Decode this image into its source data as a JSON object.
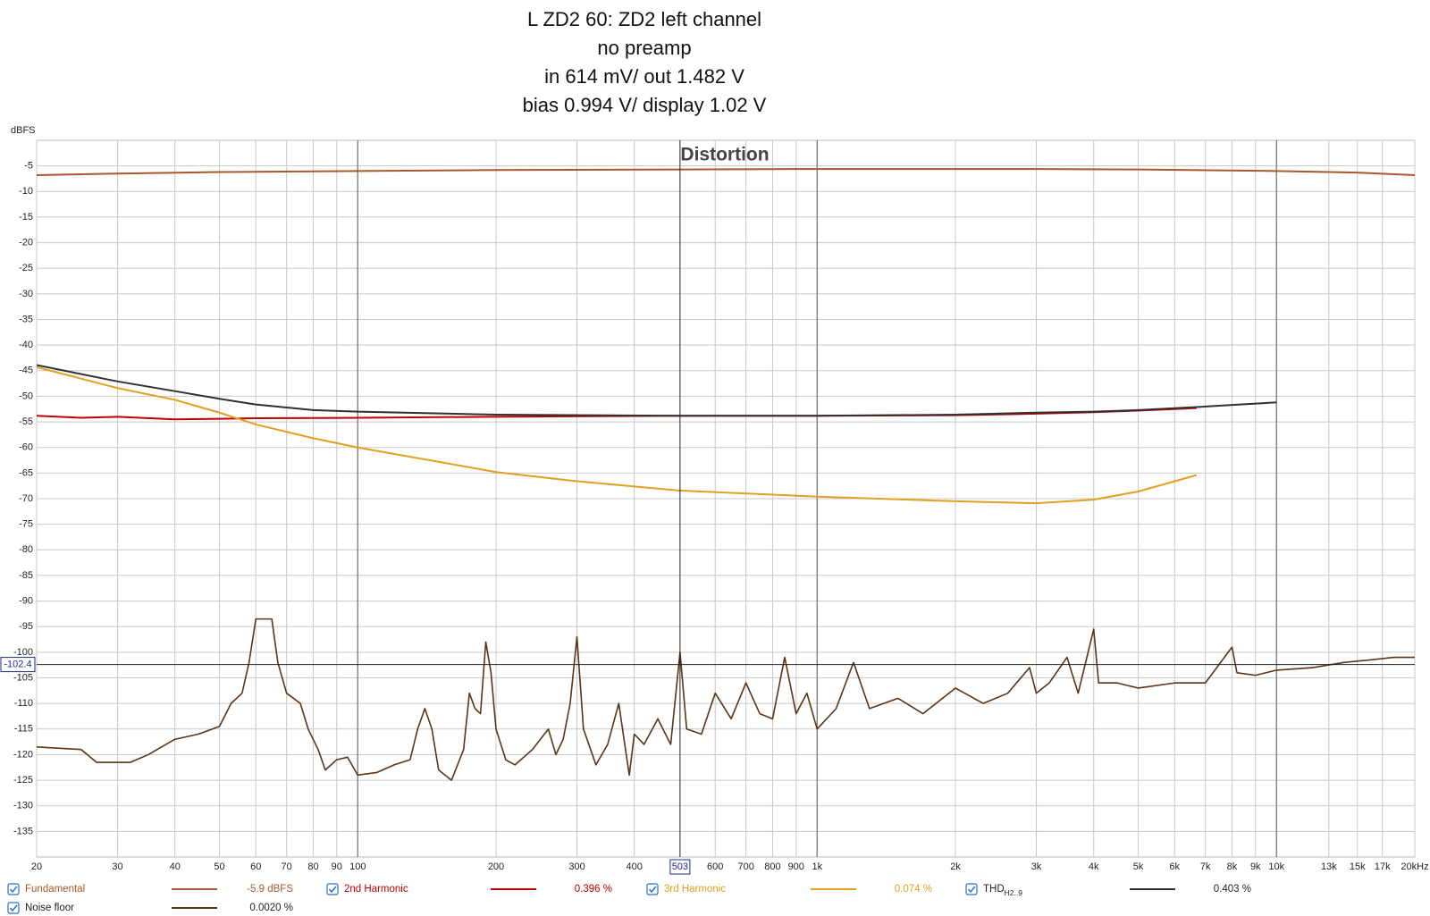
{
  "chart_data": {
    "type": "line",
    "title_lines": [
      "L ZD2 60: ZD2 left channel",
      "no preamp",
      "in 614 mV/ out 1.482 V",
      "bias 0.994 V/ display 1.02 V"
    ],
    "plot_title": "Distortion",
    "y_label": "dBFS",
    "xlog": true,
    "grid": true,
    "xlim": [
      20,
      20000
    ],
    "ylim": [
      -140,
      0
    ],
    "yticks": [
      -5,
      -10,
      -15,
      -20,
      -25,
      -30,
      -35,
      -40,
      -45,
      -50,
      -55,
      -60,
      -65,
      -70,
      -75,
      -80,
      -85,
      -90,
      -95,
      -100,
      -105,
      -110,
      -115,
      -120,
      -125,
      -130,
      -135
    ],
    "xticks": [
      20,
      30,
      40,
      50,
      60,
      70,
      80,
      90,
      100,
      200,
      300,
      400,
      600,
      700,
      800,
      900,
      {
        "value": 1000,
        "label": "1k"
      },
      {
        "value": 2000,
        "label": "2k"
      },
      {
        "value": 3000,
        "label": "3k"
      },
      {
        "value": 4000,
        "label": "4k"
      },
      {
        "value": 5000,
        "label": "5k"
      },
      {
        "value": 6000,
        "label": "6k"
      },
      {
        "value": 7000,
        "label": "7k"
      },
      {
        "value": 8000,
        "label": "8k"
      },
      {
        "value": 9000,
        "label": "9k"
      },
      {
        "value": 10000,
        "label": "10k"
      },
      {
        "value": 13000,
        "label": "13k"
      },
      {
        "value": 15000,
        "label": "15k"
      },
      {
        "value": 17000,
        "label": "17k"
      },
      {
        "value": 20000,
        "label": "20kHz"
      }
    ],
    "cursor": {
      "x": 503,
      "y": -102.4
    },
    "series": [
      {
        "name": "Fundamental",
        "color": "#a8582c",
        "readout": "-5.9 dBFS",
        "x": [
          20,
          30,
          50,
          100,
          200,
          500,
          1000,
          2000,
          3000,
          5000,
          10000,
          15000,
          20000
        ],
        "values": [
          -6.8,
          -6.5,
          -6.2,
          -6.0,
          -5.8,
          -5.7,
          -5.6,
          -5.6,
          -5.6,
          -5.7,
          -6.0,
          -6.3,
          -6.8
        ]
      },
      {
        "name": "2nd Harmonic",
        "color": "#c00000",
        "readout": "0.396 %",
        "x": [
          20,
          25,
          30,
          40,
          60,
          100,
          200,
          500,
          1000,
          2000,
          3000,
          4000,
          5000,
          6700
        ],
        "values": [
          -53.8,
          -54.2,
          -54.0,
          -54.5,
          -54.3,
          -54.2,
          -54.0,
          -53.8,
          -53.8,
          -53.7,
          -53.4,
          -53.1,
          -52.8,
          -52.3
        ]
      },
      {
        "name": "3rd Harmonic",
        "color": "#e0a020",
        "readout": "0.074 %",
        "x": [
          20,
          30,
          40,
          50,
          60,
          80,
          100,
          200,
          300,
          500,
          1000,
          2000,
          3000,
          4000,
          5000,
          6700
        ],
        "values": [
          -44.3,
          -48.4,
          -50.7,
          -53.2,
          -55.5,
          -58.2,
          -60.0,
          -64.8,
          -66.6,
          -68.4,
          -69.6,
          -70.5,
          -70.9,
          -70.2,
          -68.6,
          -65.4
        ]
      },
      {
        "name": "THD",
        "name_sub": "H2..9",
        "color": "#303030",
        "readout": "0.403 %",
        "x": [
          20,
          30,
          40,
          50,
          60,
          80,
          100,
          200,
          500,
          1000,
          2000,
          3000,
          4000,
          5000,
          6700,
          10000
        ],
        "values": [
          -43.9,
          -47.1,
          -49.0,
          -50.5,
          -51.6,
          -52.7,
          -53.0,
          -53.6,
          -53.8,
          -53.8,
          -53.6,
          -53.2,
          -53.0,
          -52.7,
          -52.1,
          -51.2
        ]
      },
      {
        "name": "Noise floor",
        "color": "#5c3317",
        "readout": "0.0020 %",
        "x": [
          20,
          25,
          27,
          32,
          35,
          40,
          45,
          50,
          53,
          56,
          58,
          60,
          65,
          67,
          70,
          75,
          78,
          82,
          85,
          90,
          95,
          100,
          110,
          120,
          130,
          135,
          140,
          145,
          150,
          160,
          170,
          175,
          180,
          185,
          190,
          195,
          200,
          210,
          220,
          240,
          260,
          270,
          280,
          290,
          300,
          310,
          330,
          350,
          370,
          390,
          400,
          420,
          450,
          480,
          503,
          520,
          560,
          600,
          650,
          700,
          750,
          800,
          850,
          900,
          950,
          1000,
          1100,
          1200,
          1300,
          1500,
          1700,
          2000,
          2300,
          2600,
          2900,
          3000,
          3200,
          3500,
          3700,
          4000,
          4100,
          4500,
          5000,
          6000,
          7000,
          8000,
          8200,
          9000,
          10000,
          12000,
          14000,
          16000,
          18000,
          20000
        ],
        "values": [
          -118.5,
          -119,
          -121.5,
          -121.5,
          -120,
          -117,
          -116,
          -114.5,
          -110,
          -108,
          -102,
          -93.5,
          -93.5,
          -102,
          -108,
          -110,
          -115,
          -119,
          -123,
          -121,
          -120.5,
          -124,
          -123.5,
          -122,
          -121,
          -115,
          -111,
          -115,
          -123,
          -125,
          -119,
          -108,
          -111,
          -112,
          -98,
          -104,
          -115,
          -121,
          -122,
          -119,
          -115,
          -120,
          -117,
          -110,
          -97,
          -115,
          -122,
          -118,
          -110,
          -124,
          -116,
          -118,
          -113,
          -118,
          -100,
          -115,
          -116,
          -108,
          -113,
          -106,
          -112,
          -113,
          -101,
          -112,
          -108,
          -115,
          -111,
          -102,
          -111,
          -109,
          -112,
          -107,
          -110,
          -108,
          -103,
          -108,
          -106,
          -101,
          -108,
          -95.5,
          -106,
          -106,
          -107,
          -106,
          -106,
          -99,
          -104,
          -104.5,
          -103.5,
          -103,
          -102,
          -101.5,
          -101,
          -101
        ]
      }
    ]
  }
}
